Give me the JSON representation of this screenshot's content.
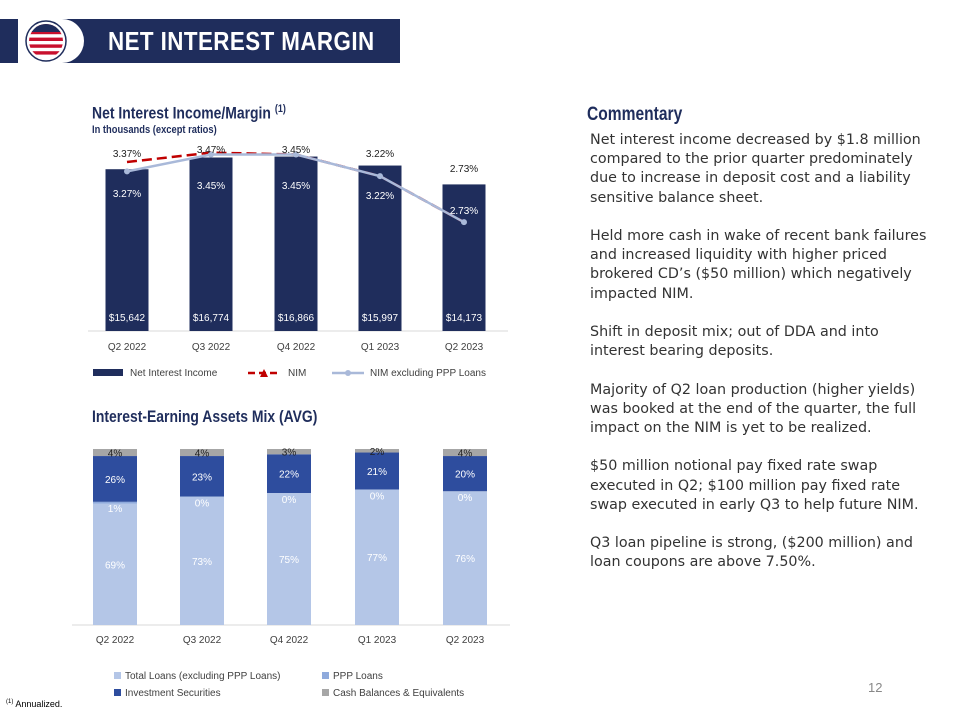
{
  "header": {
    "title": "NET INTEREST MARGIN",
    "logo_icon": "flag-circle-icon"
  },
  "colors": {
    "navy": "#1f2d5c",
    "light_blue": "#b4c6e7",
    "mid_blue": "#2e4d9e",
    "gray": "#a6a6a6",
    "red": "#c00000"
  },
  "nim_chart": {
    "title": "Net Interest Income/Margin",
    "title_sup": "(1)",
    "subtitle": "In thousands (except ratios)"
  },
  "mix_chart": {
    "title": "Interest-Earning Assets Mix (AVG)"
  },
  "chart_data": [
    {
      "type": "bar",
      "title": "Net Interest Income/Margin (1)",
      "subtitle": "In thousands (except ratios)",
      "categories": [
        "Q2 2022",
        "Q3 2022",
        "Q4 2022",
        "Q1 2023",
        "Q2 2023"
      ],
      "series": [
        {
          "name": "Net Interest Income",
          "kind": "bar",
          "values": [
            15642,
            16774,
            16866,
            15997,
            14173
          ],
          "labels": [
            "$15,642",
            "$16,774",
            "$16,866",
            "$15,997",
            "$14,173"
          ]
        },
        {
          "name": "NIM",
          "kind": "line",
          "values": [
            3.37,
            3.47,
            3.45,
            3.22,
            2.73
          ],
          "labels": [
            "3.37%",
            "3.47%",
            "3.45%",
            "3.22%",
            "2.73%"
          ]
        },
        {
          "name": "NIM excluding PPP Loans",
          "kind": "line",
          "values": [
            3.27,
            3.45,
            3.45,
            3.22,
            2.73
          ],
          "labels": [
            "3.27%",
            "3.45%",
            "3.45%",
            "3.22%",
            "2.73%"
          ]
        }
      ],
      "legend": [
        "Net Interest Income",
        "NIM",
        "NIM excluding PPP Loans"
      ],
      "legend_position": "bottom",
      "ylim": [
        0,
        17500
      ]
    },
    {
      "type": "bar",
      "stacked": true,
      "title": "Interest-Earning Assets Mix (AVG)",
      "categories": [
        "Q2 2022",
        "Q3 2022",
        "Q4 2022",
        "Q1 2023",
        "Q2 2023"
      ],
      "series": [
        {
          "name": "Total Loans (excluding PPP Loans)",
          "values": [
            69,
            73,
            75,
            77,
            76
          ],
          "labels": [
            "69%",
            "73%",
            "75%",
            "77%",
            "76%"
          ]
        },
        {
          "name": "PPP Loans",
          "values": [
            1,
            0,
            0,
            0,
            0
          ],
          "labels": [
            "1%",
            "0%",
            "0%",
            "0%",
            "0%"
          ]
        },
        {
          "name": "Investment Securities",
          "values": [
            26,
            23,
            22,
            21,
            20
          ],
          "labels": [
            "26%",
            "23%",
            "22%",
            "21%",
            "20%"
          ]
        },
        {
          "name": "Cash Balances & Equivalents",
          "values": [
            4,
            4,
            3,
            2,
            4
          ],
          "labels": [
            "4%",
            "4%",
            "3%",
            "2%",
            "4%"
          ]
        }
      ],
      "legend": [
        "Total Loans (excluding PPP Loans)",
        "PPP Loans",
        "Investment Securities",
        "Cash Balances & Equivalents"
      ],
      "legend_position": "bottom",
      "ylim": [
        0,
        100
      ]
    }
  ],
  "commentary": {
    "title": "Commentary",
    "paragraphs": [
      "Net interest income decreased by $1.8 million compared to the prior quarter predominately due to increase in deposit cost and a liability sensitive balance sheet.",
      "Held more cash in wake of recent bank failures and increased liquidity with higher priced brokered CD’s ($50 million) which negatively impacted NIM.",
      "Shift in deposit mix; out of DDA and into interest bearing deposits.",
      "Majority of Q2 loan production (higher yields) was booked at the end of the quarter, the full impact on the NIM is yet to be realized.",
      "$50 million notional pay fixed rate swap executed in Q2; $100 million pay fixed rate swap executed in early Q3 to help future NIM.",
      "Q3 loan pipeline is strong, ($200 million) and loan coupons are above 7.50%."
    ]
  },
  "footer": {
    "page_number": "12",
    "footnote_sup": "(1)",
    "footnote": "Annualized."
  }
}
